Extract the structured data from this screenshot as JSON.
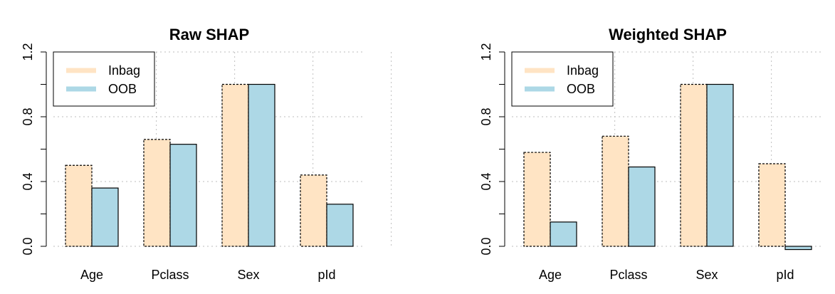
{
  "chart_data": [
    {
      "type": "bar",
      "title": "Raw SHAP",
      "categories": [
        "Age",
        "Pclass",
        "Sex",
        "pId"
      ],
      "series": [
        {
          "name": "Inbag",
          "values": [
            0.5,
            0.66,
            1.0,
            0.44
          ]
        },
        {
          "name": "OOB",
          "values": [
            0.36,
            0.63,
            1.0,
            0.26
          ]
        }
      ],
      "ylim": [
        0,
        1.2
      ],
      "yticks": [
        "0.0",
        "0.4",
        "0.8",
        "1.2"
      ],
      "grid": true,
      "legend_position": "top-left"
    },
    {
      "type": "bar",
      "title": "Weighted SHAP",
      "categories": [
        "Age",
        "Pclass",
        "Sex",
        "pId"
      ],
      "series": [
        {
          "name": "Inbag",
          "values": [
            0.58,
            0.68,
            1.0,
            0.51
          ]
        },
        {
          "name": "OOB",
          "values": [
            0.15,
            0.49,
            1.0,
            -0.02
          ]
        }
      ],
      "ylim": [
        0,
        1.2
      ],
      "yticks": [
        "0.0",
        "0.4",
        "0.8",
        "1.2"
      ],
      "grid": true,
      "legend_position": "top-left"
    }
  ],
  "colors": {
    "inbag": "#FFE4C4",
    "oob": "#ADD8E6",
    "grid": "#BEBEBE",
    "axis": "#000000"
  }
}
